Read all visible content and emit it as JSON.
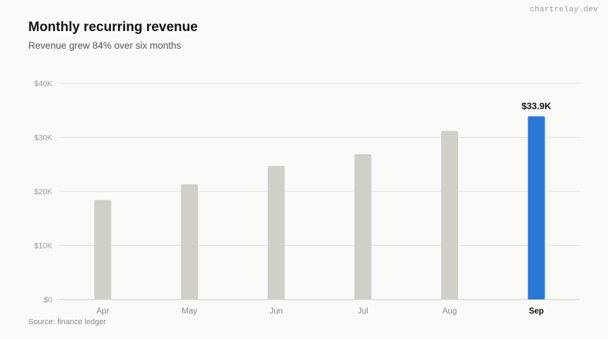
{
  "watermark": "chartrelay.dev",
  "source": "Source: finance ledger",
  "colors": {
    "bar": "#d0d0c8",
    "highlight": "#2a78d6",
    "grid": "#e3e3e0",
    "axis": "#c8c8c4"
  },
  "chart_data": {
    "type": "bar",
    "title": "Monthly recurring revenue",
    "subtitle": "Revenue grew 84% over six months",
    "xlabel": "",
    "ylabel": "",
    "categories": [
      "Apr",
      "May",
      "Jun",
      "Jul",
      "Aug",
      "Sep"
    ],
    "values": [
      18400,
      21300,
      24700,
      26900,
      31200,
      33900
    ],
    "highlight": "Sep",
    "data_labels": {
      "Sep": "$33.9K"
    },
    "ylim": [
      0,
      40000
    ],
    "yticks": [
      0,
      10000,
      20000,
      30000,
      40000
    ],
    "ytick_labels": [
      "$0",
      "$10K",
      "$20K",
      "$30K",
      "$40K"
    ],
    "grid": true,
    "legend": "none"
  }
}
